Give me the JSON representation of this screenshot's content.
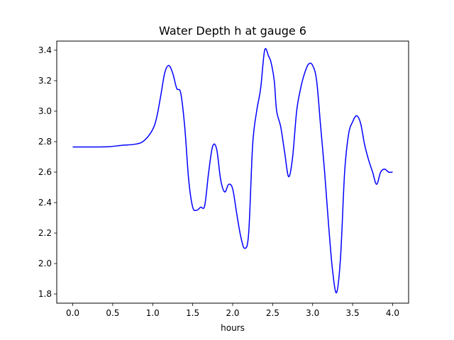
{
  "chart_data": {
    "type": "line",
    "title": "Water Depth h at gauge 6",
    "xlabel": "hours",
    "ylabel": "",
    "xlim": [
      -0.2,
      4.2
    ],
    "ylim": [
      1.74,
      3.46
    ],
    "xticks": [
      0.0,
      0.5,
      1.0,
      1.5,
      2.0,
      2.5,
      3.0,
      3.5,
      4.0
    ],
    "xtick_labels": [
      "0.0",
      "0.5",
      "1.0",
      "1.5",
      "2.0",
      "2.5",
      "3.0",
      "3.5",
      "4.0"
    ],
    "yticks": [
      1.8,
      2.0,
      2.2,
      2.4,
      2.6,
      2.8,
      3.0,
      3.2,
      3.4
    ],
    "ytick_labels": [
      "1.8",
      "2.0",
      "2.2",
      "2.4",
      "2.6",
      "2.8",
      "3.0",
      "3.2",
      "3.4"
    ],
    "grid": false,
    "legend": "none",
    "series": [
      {
        "color": "#0000ff",
        "x": [
          0.0,
          0.2,
          0.45,
          0.6,
          0.8,
          0.9,
          1.0,
          1.05,
          1.1,
          1.15,
          1.2,
          1.25,
          1.3,
          1.35,
          1.4,
          1.45,
          1.5,
          1.55,
          1.6,
          1.65,
          1.7,
          1.75,
          1.8,
          1.85,
          1.9,
          1.95,
          2.0,
          2.05,
          2.1,
          2.15,
          2.2,
          2.25,
          2.3,
          2.35,
          2.4,
          2.45,
          2.48,
          2.52,
          2.55,
          2.6,
          2.65,
          2.7,
          2.75,
          2.8,
          2.85,
          2.9,
          2.95,
          3.0,
          3.05,
          3.1,
          3.15,
          3.2,
          3.25,
          3.3,
          3.35,
          3.4,
          3.45,
          3.5,
          3.55,
          3.6,
          3.65,
          3.7,
          3.75,
          3.8,
          3.85,
          3.9,
          3.95,
          4.0
        ],
        "y": [
          2.765,
          2.765,
          2.767,
          2.775,
          2.785,
          2.81,
          2.88,
          2.96,
          3.1,
          3.25,
          3.3,
          3.25,
          3.15,
          3.12,
          2.9,
          2.55,
          2.37,
          2.35,
          2.37,
          2.38,
          2.6,
          2.77,
          2.75,
          2.55,
          2.47,
          2.52,
          2.49,
          2.33,
          2.18,
          2.1,
          2.2,
          2.78,
          3.0,
          3.15,
          3.4,
          3.36,
          3.32,
          3.2,
          3.0,
          2.9,
          2.73,
          2.57,
          2.7,
          3.0,
          3.15,
          3.25,
          3.31,
          3.3,
          3.2,
          2.9,
          2.6,
          2.25,
          1.95,
          1.81,
          2.05,
          2.6,
          2.85,
          2.93,
          2.97,
          2.92,
          2.78,
          2.68,
          2.6,
          2.52,
          2.6,
          2.62,
          2.6,
          2.6
        ]
      }
    ]
  }
}
